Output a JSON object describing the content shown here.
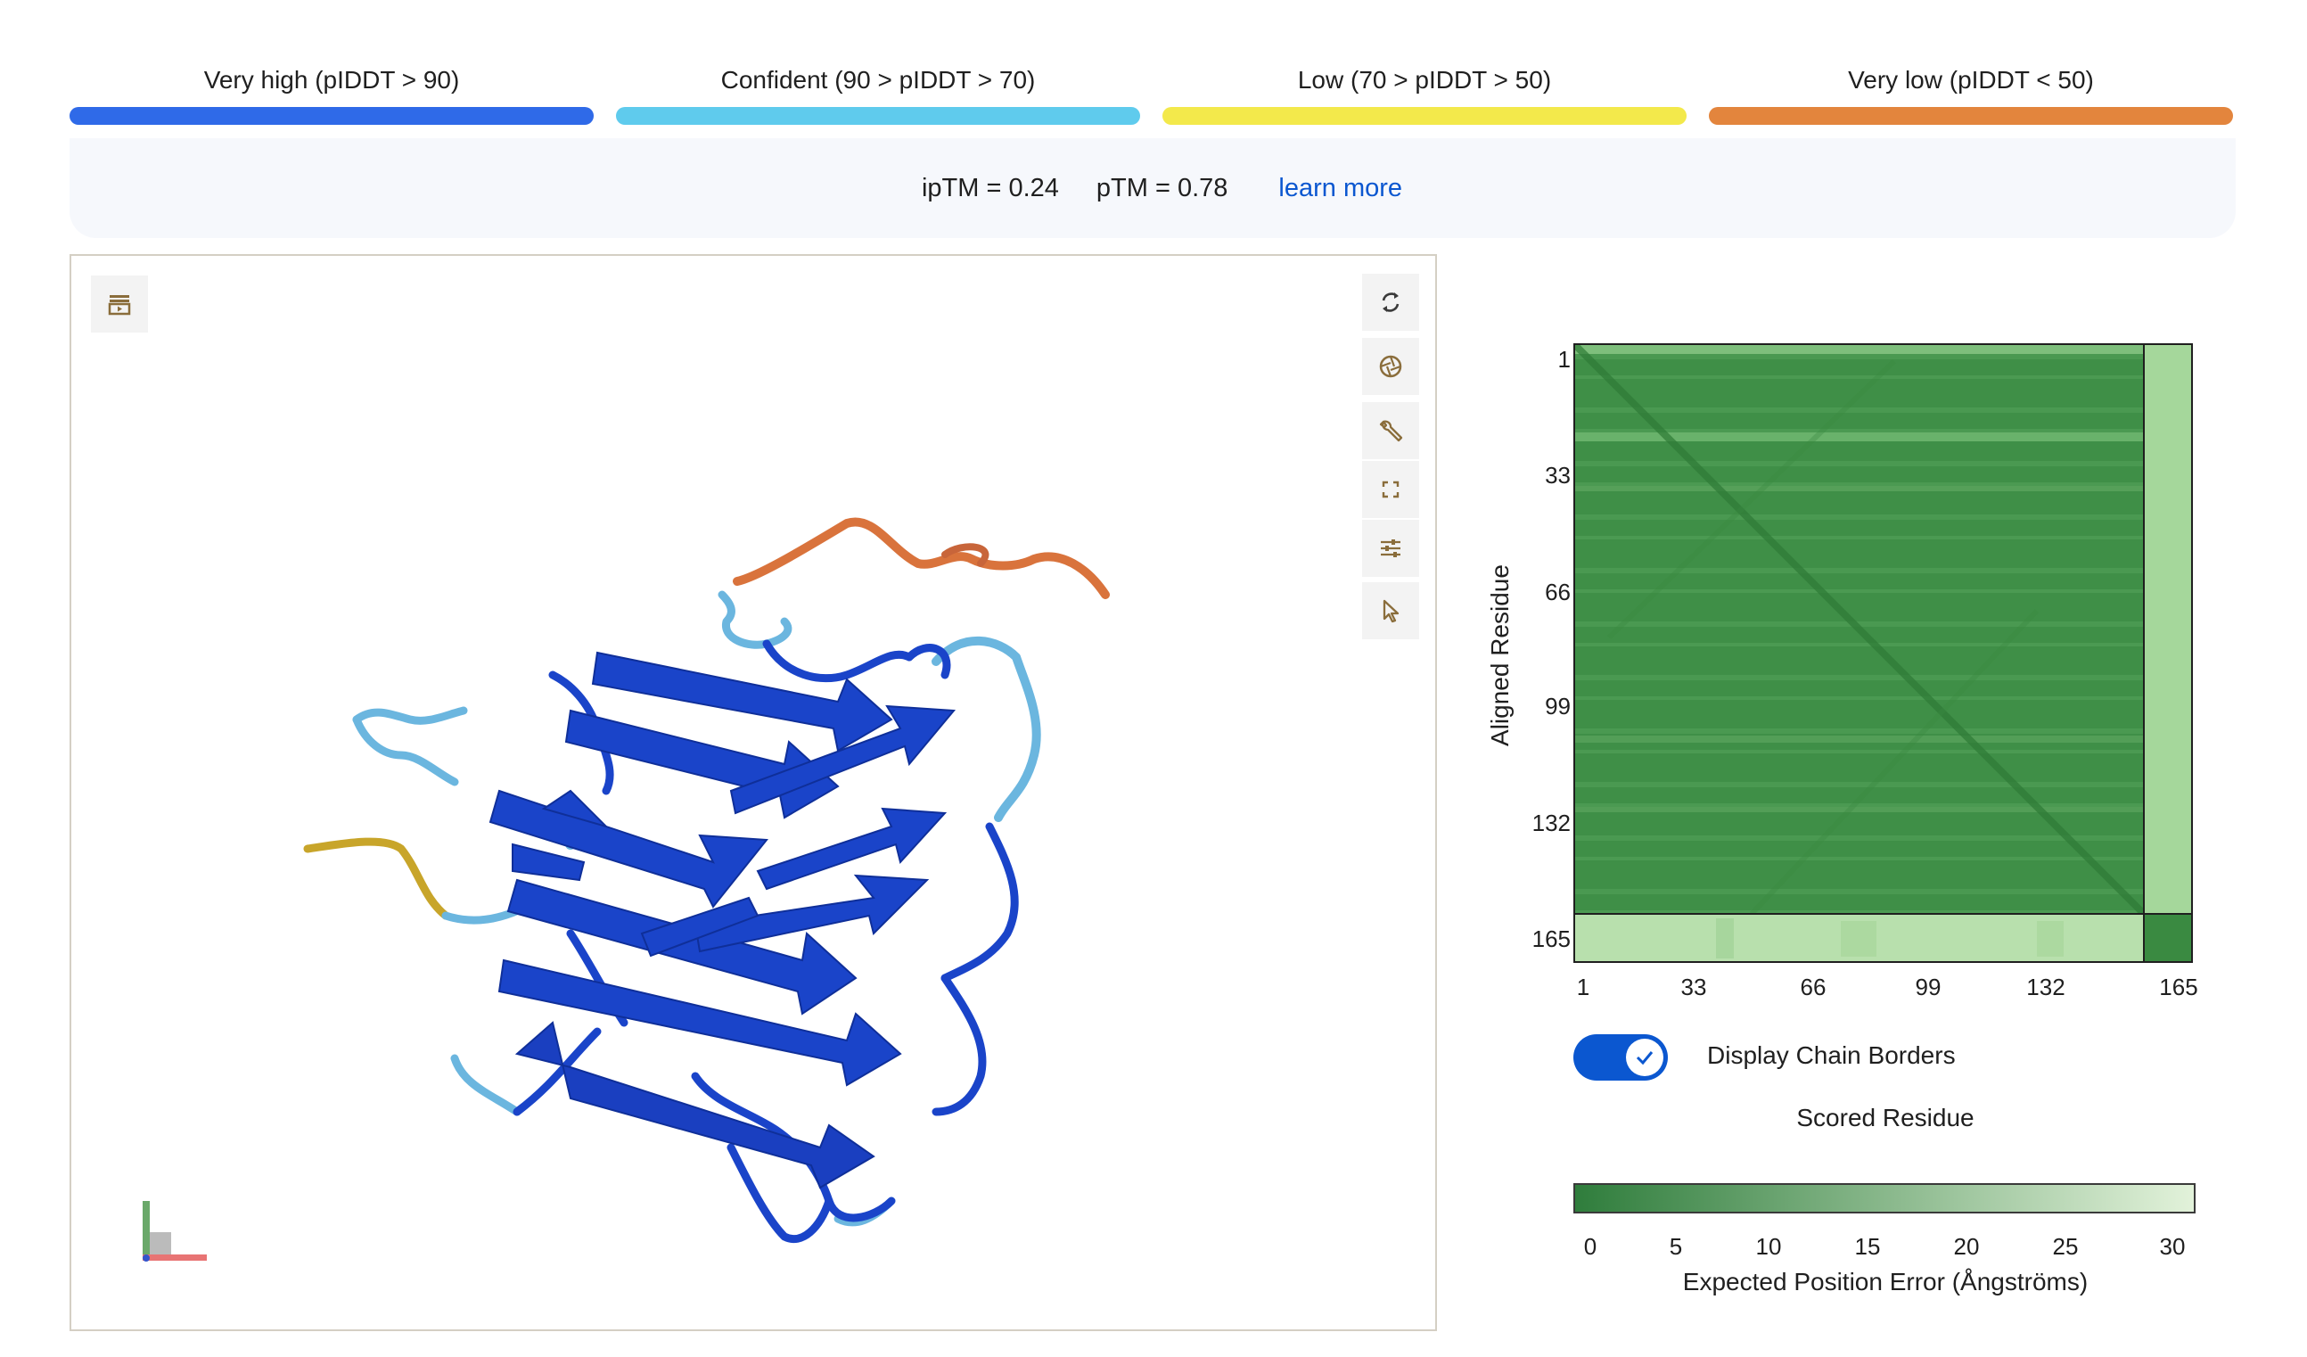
{
  "plddt_legend": [
    {
      "label": "Very high (pIDDT > 90)",
      "color": "#2f6ae8"
    },
    {
      "label": "Confident (90 > pIDDT > 70)",
      "color": "#5fcbed"
    },
    {
      "label": "Low (70 > pIDDT > 50)",
      "color": "#f3e94b"
    },
    {
      "label": "Very low (pIDDT < 50)",
      "color": "#e3853d"
    }
  ],
  "metrics": {
    "iptm": "ipTM = 0.24",
    "ptm": "pTM = 0.78",
    "learn_more": "learn more"
  },
  "viewer": {
    "tools": [
      {
        "name": "reset-view-icon"
      },
      {
        "name": "screenshot-icon"
      },
      {
        "name": "wrench-icon"
      },
      {
        "name": "fullscreen-icon"
      },
      {
        "name": "settings-sliders-icon"
      },
      {
        "name": "selection-cursor-icon"
      }
    ],
    "left_tool": "animation-panel-icon",
    "colors": {
      "very_high": "#1a44c9",
      "confident": "#6bb6df",
      "low": "#c8a52a",
      "very_low": "#d9733c"
    }
  },
  "pae": {
    "y_axis_label": "Aligned Residue",
    "x_axis_label": "Scored Residue",
    "y_ticks": [
      "1",
      "33",
      "66",
      "99",
      "132",
      "165"
    ],
    "x_ticks": [
      "1",
      "33",
      "66",
      "99",
      "132",
      "165"
    ],
    "chain_border_residue": 158,
    "total_residues": 171,
    "toggle_label": "Display Chain Borders",
    "toggle_on": true,
    "colorbar_ticks": [
      "0",
      "5",
      "10",
      "15",
      "20",
      "25",
      "30"
    ],
    "colorbar_label": "Expected Position Error (Ångströms)",
    "colorbar_colors": [
      "#2f7d3c",
      "#e2f2da"
    ]
  }
}
